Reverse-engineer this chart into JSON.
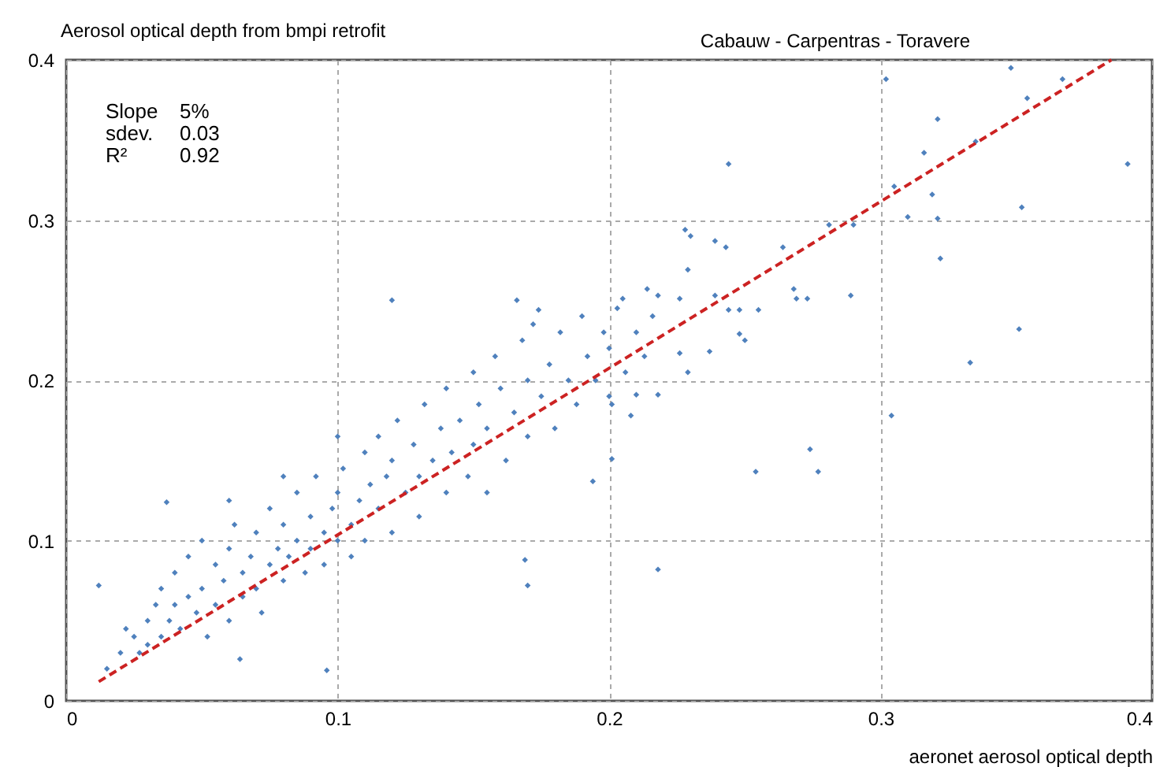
{
  "chart_data": {
    "type": "scatter",
    "title": "Cabauw - Carpentras - Toravere",
    "xlabel": "aeronet aerosol optical depth",
    "ylabel": "Aerosol optical depth from bmpi retrofit",
    "annotations": [
      "Slope 5%",
      "sdev. 0.03",
      "R² 0.92"
    ],
    "xlim": [
      0,
      0.4
    ],
    "ylim": [
      0,
      0.4
    ],
    "xticks": [
      0,
      0.1,
      0.2,
      0.3,
      0.4
    ],
    "yticks": [
      0,
      0.1,
      0.2,
      0.3,
      0.4
    ],
    "grid": true,
    "series": [
      {
        "color": "#4f81bd",
        "marker": "diamond",
        "x": [
          0.302,
          0.348,
          0.367,
          0.354,
          0.321,
          0.335,
          0.316,
          0.391,
          0.244,
          0.305,
          0.319,
          0.352,
          0.31,
          0.321,
          0.281,
          0.29,
          0.322,
          0.228,
          0.23,
          0.239,
          0.243,
          0.264,
          0.229,
          0.268,
          0.269,
          0.273,
          0.289,
          0.255,
          0.244,
          0.248,
          0.239,
          0.351,
          0.248,
          0.25,
          0.237,
          0.333,
          0.304,
          0.274,
          0.254,
          0.277,
          0.218,
          0.201,
          0.208,
          0.201,
          0.218,
          0.21,
          0.226,
          0.229,
          0.226,
          0.218,
          0.214,
          0.205,
          0.012,
          0.037,
          0.096,
          0.064,
          0.12,
          0.17,
          0.169,
          0.166,
          0.174,
          0.194,
          0.015,
          0.02,
          0.022,
          0.025,
          0.027,
          0.03,
          0.03,
          0.033,
          0.035,
          0.035,
          0.038,
          0.04,
          0.04,
          0.042,
          0.045,
          0.045,
          0.048,
          0.05,
          0.05,
          0.052,
          0.055,
          0.055,
          0.058,
          0.06,
          0.06,
          0.062,
          0.065,
          0.065,
          0.068,
          0.07,
          0.07,
          0.072,
          0.075,
          0.075,
          0.078,
          0.08,
          0.08,
          0.082,
          0.085,
          0.085,
          0.088,
          0.09,
          0.09,
          0.092,
          0.095,
          0.095,
          0.098,
          0.1,
          0.1,
          0.102,
          0.105,
          0.105,
          0.108,
          0.11,
          0.11,
          0.112,
          0.115,
          0.115,
          0.118,
          0.12,
          0.12,
          0.122,
          0.125,
          0.128,
          0.13,
          0.13,
          0.132,
          0.135,
          0.138,
          0.14,
          0.14,
          0.142,
          0.145,
          0.148,
          0.15,
          0.15,
          0.152,
          0.155,
          0.155,
          0.158,
          0.16,
          0.162,
          0.165,
          0.168,
          0.17,
          0.17,
          0.172,
          0.175,
          0.178,
          0.18,
          0.182,
          0.185,
          0.188,
          0.19,
          0.192,
          0.195,
          0.198,
          0.2,
          0.2,
          0.203,
          0.206,
          0.21,
          0.213,
          0.216,
          0.06,
          0.08,
          0.1
        ],
        "values": [
          0.388,
          0.395,
          0.388,
          0.376,
          0.363,
          0.349,
          0.342,
          0.335,
          0.335,
          0.321,
          0.316,
          0.308,
          0.302,
          0.301,
          0.297,
          0.297,
          0.276,
          0.294,
          0.29,
          0.287,
          0.283,
          0.283,
          0.269,
          0.257,
          0.251,
          0.251,
          0.253,
          0.244,
          0.244,
          0.244,
          0.253,
          0.232,
          0.229,
          0.225,
          0.218,
          0.211,
          0.178,
          0.157,
          0.143,
          0.143,
          0.082,
          0.151,
          0.178,
          0.185,
          0.191,
          0.191,
          0.217,
          0.205,
          0.251,
          0.253,
          0.257,
          0.251,
          0.072,
          0.124,
          0.019,
          0.026,
          0.25,
          0.072,
          0.088,
          0.25,
          0.244,
          0.137,
          0.02,
          0.03,
          0.045,
          0.04,
          0.03,
          0.035,
          0.05,
          0.06,
          0.04,
          0.07,
          0.05,
          0.06,
          0.08,
          0.045,
          0.065,
          0.09,
          0.055,
          0.07,
          0.1,
          0.04,
          0.06,
          0.085,
          0.075,
          0.05,
          0.095,
          0.11,
          0.065,
          0.08,
          0.09,
          0.07,
          0.105,
          0.055,
          0.085,
          0.12,
          0.095,
          0.075,
          0.11,
          0.09,
          0.1,
          0.13,
          0.08,
          0.095,
          0.115,
          0.14,
          0.105,
          0.085,
          0.12,
          0.1,
          0.13,
          0.145,
          0.11,
          0.09,
          0.125,
          0.155,
          0.1,
          0.135,
          0.12,
          0.165,
          0.14,
          0.105,
          0.15,
          0.175,
          0.13,
          0.16,
          0.14,
          0.115,
          0.185,
          0.15,
          0.17,
          0.13,
          0.195,
          0.155,
          0.175,
          0.14,
          0.16,
          0.205,
          0.185,
          0.13,
          0.17,
          0.215,
          0.195,
          0.15,
          0.18,
          0.225,
          0.165,
          0.2,
          0.235,
          0.19,
          0.21,
          0.17,
          0.23,
          0.2,
          0.185,
          0.24,
          0.215,
          0.2,
          0.23,
          0.19,
          0.22,
          0.245,
          0.205,
          0.23,
          0.215,
          0.24,
          0.125,
          0.14,
          0.165
        ]
      },
      {
        "type": "line",
        "color": "#cc2222",
        "line_style": "dashed",
        "x": [
          0.012,
          0.385
        ],
        "values": [
          0.012,
          0.4
        ]
      }
    ]
  }
}
